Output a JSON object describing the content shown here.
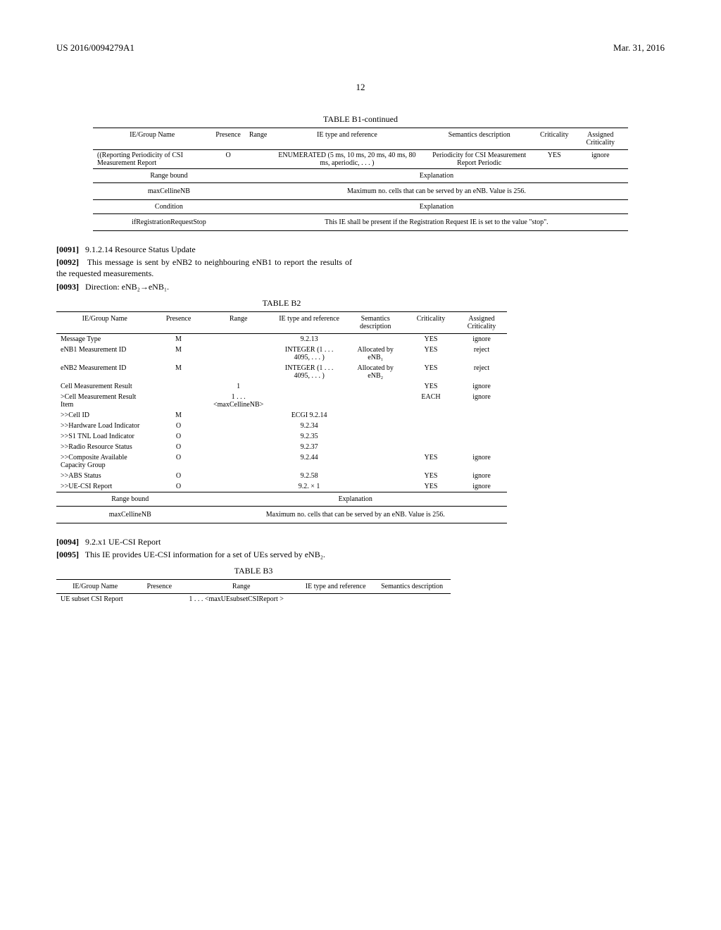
{
  "header": {
    "pub_number": "US 2016/0094279A1",
    "date": "Mar. 31, 2016",
    "page_num": "12"
  },
  "tableB1": {
    "caption": "TABLE B1-continued",
    "columns": [
      "IE/Group Name",
      "Presence",
      "Range",
      "IE type and reference",
      "Semantics description",
      "Criticality",
      "Assigned Criticality"
    ],
    "rows": [
      {
        "name": "((Reporting Periodicity of CSI Measurement Report",
        "presence": "O",
        "range": "",
        "ref": "ENUMERATED (5 ms, 10 ms, 20 ms, 40 ms, 80 ms, aperiodic, . . . )",
        "sem": "Periodicity for CSI Measurement Report Periodic",
        "crit": "YES",
        "assigned": "ignore"
      }
    ],
    "range_bound_label": "Range bound",
    "range_bound_exp_label": "Explanation",
    "range_bound_name": "maxCellineNB",
    "range_bound_exp": "Maximum no. cells that can be served by an eNB. Value is 256.",
    "condition_label": "Condition",
    "condition_exp_label": "Explanation",
    "condition_name": "ifRegistrationRequestStop",
    "condition_exp": "This IE shall be present if the Registration Request IE is set to the value \"stop\"."
  },
  "paras1": [
    {
      "num": "[0091]",
      "text": "9.1.2.14 Resource Status Update"
    },
    {
      "num": "[0092]",
      "text": "This message is sent by eNB2 to neighbouring eNB1 to report the results of the requested measurements."
    },
    {
      "num": "[0093]",
      "text": "Direction: eNB₂→eNB₁."
    }
  ],
  "tableB2": {
    "caption": "TABLE B2",
    "columns": [
      "IE/Group Name",
      "Presence",
      "Range",
      "IE type and reference",
      "Semantics description",
      "Criticality",
      "Assigned Criticality"
    ],
    "rows": [
      {
        "name": "Message Type",
        "presence": "M",
        "range": "",
        "ref": "9.2.13",
        "sem": "",
        "crit": "YES",
        "assigned": "ignore"
      },
      {
        "name": "eNB1 Measurement ID",
        "presence": "M",
        "range": "",
        "ref": "INTEGER (1 . . . 4095, . . . )",
        "sem": "Allocated by eNB₁",
        "crit": "YES",
        "assigned": "reject"
      },
      {
        "name": "eNB2 Measurement ID",
        "presence": "M",
        "range": "",
        "ref": "INTEGER (1 . . . 4095, . . . )",
        "sem": "Allocated by eNB₂",
        "crit": "YES",
        "assigned": "reject"
      },
      {
        "name": "Cell Measurement Result",
        "presence": "",
        "range": "1",
        "ref": "",
        "sem": "",
        "crit": "YES",
        "assigned": "ignore"
      },
      {
        "name": ">Cell Measurement Result Item",
        "presence": "",
        "range": "1 . . . <maxCellineNB>",
        "ref": "",
        "sem": "",
        "crit": "EACH",
        "assigned": "ignore"
      },
      {
        "name": ">>Cell ID",
        "presence": "M",
        "range": "",
        "ref": "ECGI 9.2.14",
        "sem": "",
        "crit": "",
        "assigned": ""
      },
      {
        "name": ">>Hardware Load Indicator",
        "presence": "O",
        "range": "",
        "ref": "9.2.34",
        "sem": "",
        "crit": "",
        "assigned": ""
      },
      {
        "name": ">>S1 TNL Load Indicator",
        "presence": "O",
        "range": "",
        "ref": "9.2.35",
        "sem": "",
        "crit": "",
        "assigned": ""
      },
      {
        "name": ">>Radio Resource Status",
        "presence": "O",
        "range": "",
        "ref": "9.2.37",
        "sem": "",
        "crit": "",
        "assigned": ""
      },
      {
        "name": ">>Composite Available Capacity Group",
        "presence": "O",
        "range": "",
        "ref": "9.2.44",
        "sem": "",
        "crit": "YES",
        "assigned": "ignore"
      },
      {
        "name": ">>ABS Status",
        "presence": "O",
        "range": "",
        "ref": "9.2.58",
        "sem": "",
        "crit": "YES",
        "assigned": "ignore"
      },
      {
        "name": ">>UE-CSI Report",
        "presence": "O",
        "range": "",
        "ref": "9.2. × 1",
        "sem": "",
        "crit": "YES",
        "assigned": "ignore"
      }
    ],
    "range_bound_label": "Range bound",
    "range_bound_exp_label": "Explanation",
    "range_bound_name": "maxCellineNB",
    "range_bound_exp": "Maximum no. cells that can be served by an eNB. Value is 256."
  },
  "paras2": [
    {
      "num": "[0094]",
      "text": "9.2.x1 UE-CSI Report"
    },
    {
      "num": "[0095]",
      "text": "This IE provides UE-CSI information for a set of UEs served by eNB₂."
    }
  ],
  "tableB3": {
    "caption": "TABLE B3",
    "columns": [
      "IE/Group Name",
      "Presence",
      "Range",
      "IE type and reference",
      "Semantics description"
    ],
    "rows": [
      {
        "name": "UE subset CSI Report",
        "presence": "",
        "range": "1 . . . <maxUEsubsetCSIReport >",
        "ref": "",
        "sem": ""
      }
    ]
  }
}
